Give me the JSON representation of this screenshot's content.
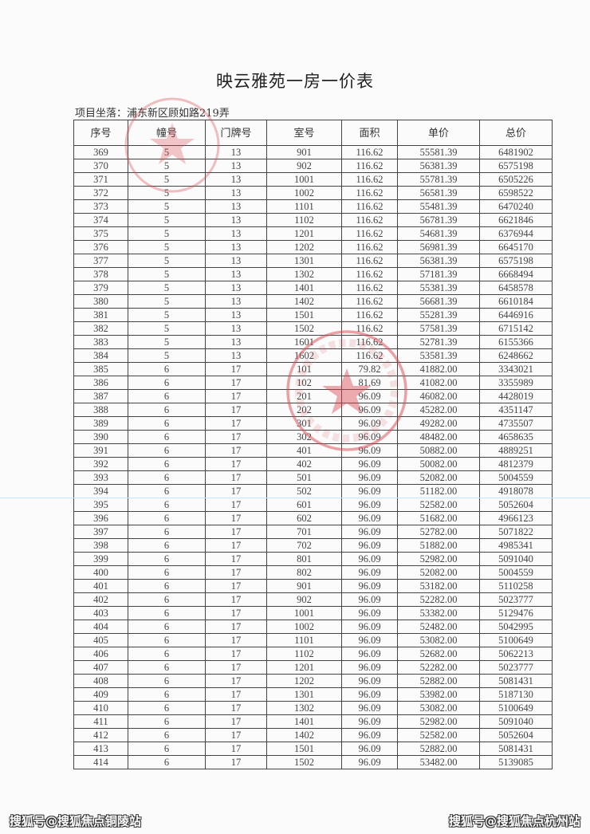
{
  "document": {
    "title": "映云雅苑一房一价表",
    "location": "项目坐落：浦东新区顾如路219弄",
    "stamp_color": "#d9484f"
  },
  "table": {
    "headers": [
      "序号",
      "幢号",
      "门牌号",
      "室号",
      "面积",
      "单价",
      "总价"
    ],
    "rows": [
      [
        "369",
        "5",
        "13",
        "901",
        "116.62",
        "55581.39",
        "6481902"
      ],
      [
        "370",
        "5",
        "13",
        "902",
        "116.62",
        "56381.39",
        "6575198"
      ],
      [
        "371",
        "5",
        "13",
        "1001",
        "116.62",
        "55781.39",
        "6505226"
      ],
      [
        "372",
        "5",
        "13",
        "1002",
        "116.62",
        "56581.39",
        "6598522"
      ],
      [
        "373",
        "5",
        "13",
        "1101",
        "116.62",
        "55481.39",
        "6470240"
      ],
      [
        "374",
        "5",
        "13",
        "1102",
        "116.62",
        "56781.39",
        "6621846"
      ],
      [
        "375",
        "5",
        "13",
        "1201",
        "116.62",
        "54681.39",
        "6376944"
      ],
      [
        "376",
        "5",
        "13",
        "1202",
        "116.62",
        "56981.39",
        "6645170"
      ],
      [
        "377",
        "5",
        "13",
        "1301",
        "116.62",
        "56381.39",
        "6575198"
      ],
      [
        "378",
        "5",
        "13",
        "1302",
        "116.62",
        "57181.39",
        "6668494"
      ],
      [
        "379",
        "5",
        "13",
        "1401",
        "116.62",
        "55381.39",
        "6458578"
      ],
      [
        "380",
        "5",
        "13",
        "1402",
        "116.62",
        "56681.39",
        "6610184"
      ],
      [
        "381",
        "5",
        "13",
        "1501",
        "116.62",
        "55281.39",
        "6446916"
      ],
      [
        "382",
        "5",
        "13",
        "1502",
        "116.62",
        "57581.39",
        "6715142"
      ],
      [
        "383",
        "5",
        "13",
        "1601",
        "116.62",
        "52781.39",
        "6155366"
      ],
      [
        "384",
        "5",
        "13",
        "1602",
        "116.62",
        "53581.39",
        "6248662"
      ],
      [
        "385",
        "6",
        "17",
        "101",
        "79.82",
        "41882.00",
        "3343021"
      ],
      [
        "386",
        "6",
        "17",
        "102",
        "81.69",
        "41082.00",
        "3355989"
      ],
      [
        "387",
        "6",
        "17",
        "201",
        "96.09",
        "46082.00",
        "4428019"
      ],
      [
        "388",
        "6",
        "17",
        "202",
        "96.09",
        "45282.00",
        "4351147"
      ],
      [
        "389",
        "6",
        "17",
        "301",
        "96.09",
        "49282.00",
        "4735507"
      ],
      [
        "390",
        "6",
        "17",
        "302",
        "96.09",
        "48482.00",
        "4658635"
      ],
      [
        "391",
        "6",
        "17",
        "401",
        "96.09",
        "50882.00",
        "4889251"
      ],
      [
        "392",
        "6",
        "17",
        "402",
        "96.09",
        "50082.00",
        "4812379"
      ],
      [
        "393",
        "6",
        "17",
        "501",
        "96.09",
        "52082.00",
        "5004559"
      ],
      [
        "394",
        "6",
        "17",
        "502",
        "96.09",
        "51182.00",
        "4918078"
      ],
      [
        "395",
        "6",
        "17",
        "601",
        "96.09",
        "52582.00",
        "5052604"
      ],
      [
        "396",
        "6",
        "17",
        "602",
        "96.09",
        "51682.00",
        "4966123"
      ],
      [
        "397",
        "6",
        "17",
        "701",
        "96.09",
        "52782.00",
        "5071822"
      ],
      [
        "398",
        "6",
        "17",
        "702",
        "96.09",
        "51882.00",
        "4985341"
      ],
      [
        "399",
        "6",
        "17",
        "801",
        "96.09",
        "52982.00",
        "5091040"
      ],
      [
        "400",
        "6",
        "17",
        "802",
        "96.09",
        "52082.00",
        "5004559"
      ],
      [
        "401",
        "6",
        "17",
        "901",
        "96.09",
        "53182.00",
        "5110258"
      ],
      [
        "402",
        "6",
        "17",
        "902",
        "96.09",
        "52282.00",
        "5023777"
      ],
      [
        "403",
        "6",
        "17",
        "1001",
        "96.09",
        "53382.00",
        "5129476"
      ],
      [
        "404",
        "6",
        "17",
        "1002",
        "96.09",
        "52482.00",
        "5042995"
      ],
      [
        "405",
        "6",
        "17",
        "1101",
        "96.09",
        "53082.00",
        "5100649"
      ],
      [
        "406",
        "6",
        "17",
        "1102",
        "96.09",
        "52682.00",
        "5062213"
      ],
      [
        "407",
        "6",
        "17",
        "1201",
        "96.09",
        "52282.00",
        "5023777"
      ],
      [
        "408",
        "6",
        "17",
        "1202",
        "96.09",
        "52882.00",
        "5081431"
      ],
      [
        "409",
        "6",
        "17",
        "1301",
        "96.09",
        "53982.00",
        "5187130"
      ],
      [
        "410",
        "6",
        "17",
        "1302",
        "96.09",
        "53082.00",
        "5100649"
      ],
      [
        "411",
        "6",
        "17",
        "1401",
        "96.09",
        "52982.00",
        "5091040"
      ],
      [
        "412",
        "6",
        "17",
        "1402",
        "96.09",
        "52582.00",
        "5052604"
      ],
      [
        "413",
        "6",
        "17",
        "1501",
        "96.09",
        "52882.00",
        "5081431"
      ],
      [
        "414",
        "6",
        "17",
        "1502",
        "96.09",
        "53482.00",
        "5139085"
      ]
    ]
  },
  "watermarks": {
    "left": "搜狐号@搜狐焦点铜陵站",
    "right": "搜狐号@搜狐焦点杭州站"
  }
}
